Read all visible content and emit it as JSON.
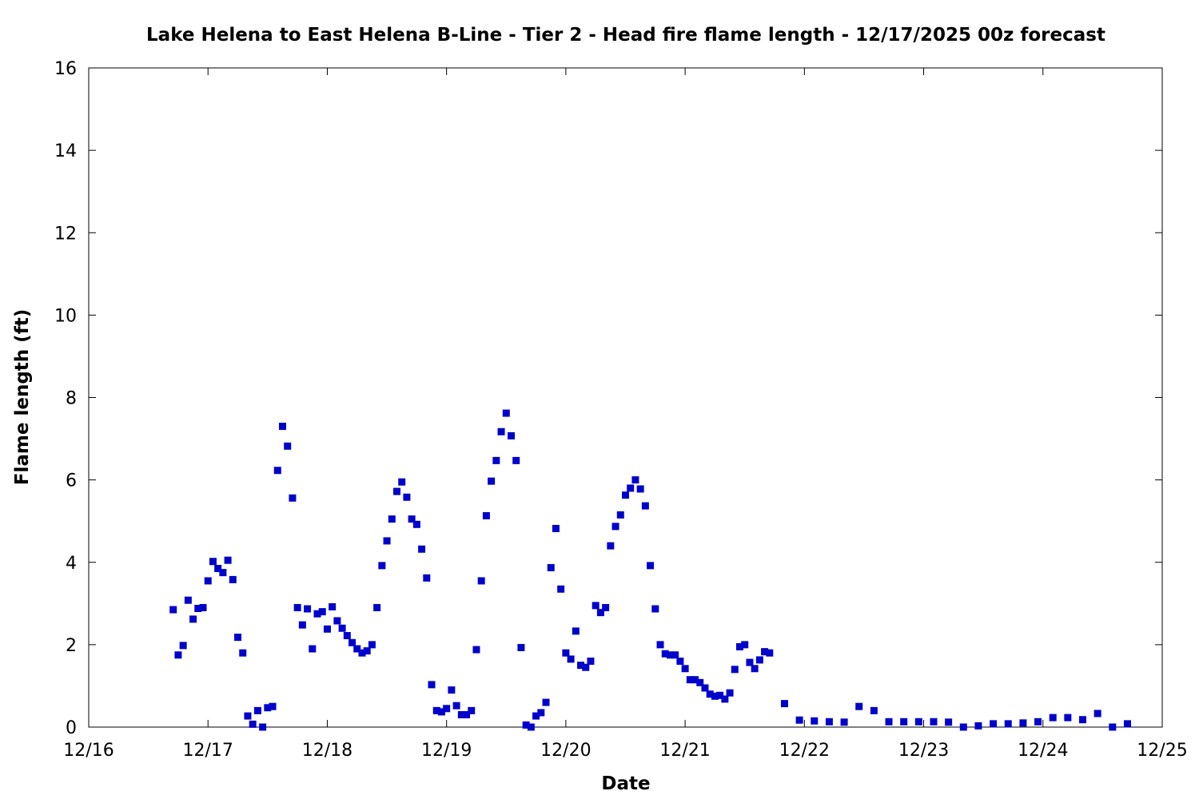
{
  "chart_data": {
    "type": "scatter",
    "title": "Lake Helena to East Helena B-Line - Tier 2 - Head fire flame length - 12/17/2025 00z forecast",
    "xlabel": "Date",
    "ylabel": "Flame length (ft)",
    "xlim": [
      "2025-12-16T00:00",
      "2025-12-25T00:00"
    ],
    "ylim": [
      0,
      16
    ],
    "grid": false,
    "x_tick_labels": [
      "12/16",
      "12/17",
      "12/18",
      "12/19",
      "12/20",
      "12/21",
      "12/22",
      "12/23",
      "12/24",
      "12/25"
    ],
    "y_tick_labels": [
      "0",
      "2",
      "4",
      "6",
      "8",
      "10",
      "12",
      "14",
      "16"
    ],
    "marker_color": "#0000cc",
    "series": [
      {
        "points": [
          [
            "2025-12-16T17:00",
            2.85
          ],
          [
            "2025-12-16T18:00",
            1.75
          ],
          [
            "2025-12-16T19:00",
            1.98
          ],
          [
            "2025-12-16T20:00",
            3.08
          ],
          [
            "2025-12-16T21:00",
            2.62
          ],
          [
            "2025-12-16T22:00",
            2.88
          ],
          [
            "2025-12-16T23:00",
            2.9
          ],
          [
            "2025-12-17T00:00",
            3.55
          ],
          [
            "2025-12-17T01:00",
            4.02
          ],
          [
            "2025-12-17T02:00",
            3.85
          ],
          [
            "2025-12-17T03:00",
            3.75
          ],
          [
            "2025-12-17T04:00",
            4.05
          ],
          [
            "2025-12-17T05:00",
            3.58
          ],
          [
            "2025-12-17T06:00",
            2.18
          ],
          [
            "2025-12-17T07:00",
            1.8
          ],
          [
            "2025-12-17T08:00",
            0.27
          ],
          [
            "2025-12-17T09:00",
            0.07
          ],
          [
            "2025-12-17T10:00",
            0.4
          ],
          [
            "2025-12-17T11:00",
            0.0
          ],
          [
            "2025-12-17T12:00",
            0.47
          ],
          [
            "2025-12-17T13:00",
            0.5
          ],
          [
            "2025-12-17T14:00",
            6.23
          ],
          [
            "2025-12-17T15:00",
            7.3
          ],
          [
            "2025-12-17T16:00",
            6.82
          ],
          [
            "2025-12-17T17:00",
            5.56
          ],
          [
            "2025-12-17T18:00",
            2.9
          ],
          [
            "2025-12-17T19:00",
            2.48
          ],
          [
            "2025-12-17T20:00",
            2.87
          ],
          [
            "2025-12-17T21:00",
            1.9
          ],
          [
            "2025-12-17T22:00",
            2.75
          ],
          [
            "2025-12-17T23:00",
            2.8
          ],
          [
            "2025-12-18T00:00",
            2.38
          ],
          [
            "2025-12-18T01:00",
            2.92
          ],
          [
            "2025-12-18T02:00",
            2.58
          ],
          [
            "2025-12-18T03:00",
            2.4
          ],
          [
            "2025-12-18T04:00",
            2.22
          ],
          [
            "2025-12-18T05:00",
            2.05
          ],
          [
            "2025-12-18T06:00",
            1.9
          ],
          [
            "2025-12-18T07:00",
            1.8
          ],
          [
            "2025-12-18T08:00",
            1.85
          ],
          [
            "2025-12-18T09:00",
            2.0
          ],
          [
            "2025-12-18T10:00",
            2.9
          ],
          [
            "2025-12-18T11:00",
            3.92
          ],
          [
            "2025-12-18T12:00",
            4.52
          ],
          [
            "2025-12-18T13:00",
            5.05
          ],
          [
            "2025-12-18T14:00",
            5.72
          ],
          [
            "2025-12-18T15:00",
            5.95
          ],
          [
            "2025-12-18T16:00",
            5.58
          ],
          [
            "2025-12-18T17:00",
            5.05
          ],
          [
            "2025-12-18T18:00",
            4.92
          ],
          [
            "2025-12-18T19:00",
            4.32
          ],
          [
            "2025-12-18T20:00",
            3.62
          ],
          [
            "2025-12-18T21:00",
            1.03
          ],
          [
            "2025-12-18T22:00",
            0.4
          ],
          [
            "2025-12-18T23:00",
            0.37
          ],
          [
            "2025-12-19T00:00",
            0.45
          ],
          [
            "2025-12-19T01:00",
            0.9
          ],
          [
            "2025-12-19T02:00",
            0.52
          ],
          [
            "2025-12-19T03:00",
            0.3
          ],
          [
            "2025-12-19T04:00",
            0.3
          ],
          [
            "2025-12-19T05:00",
            0.4
          ],
          [
            "2025-12-19T06:00",
            1.88
          ],
          [
            "2025-12-19T07:00",
            3.55
          ],
          [
            "2025-12-19T08:00",
            5.13
          ],
          [
            "2025-12-19T09:00",
            5.97
          ],
          [
            "2025-12-19T10:00",
            6.47
          ],
          [
            "2025-12-19T11:00",
            7.17
          ],
          [
            "2025-12-19T12:00",
            7.62
          ],
          [
            "2025-12-19T13:00",
            7.07
          ],
          [
            "2025-12-19T14:00",
            6.47
          ],
          [
            "2025-12-19T15:00",
            1.93
          ],
          [
            "2025-12-19T16:00",
            0.05
          ],
          [
            "2025-12-19T17:00",
            0.0
          ],
          [
            "2025-12-19T18:00",
            0.27
          ],
          [
            "2025-12-19T19:00",
            0.35
          ],
          [
            "2025-12-19T20:00",
            0.6
          ],
          [
            "2025-12-19T21:00",
            3.87
          ],
          [
            "2025-12-19T22:00",
            4.82
          ],
          [
            "2025-12-19T23:00",
            3.35
          ],
          [
            "2025-12-20T00:00",
            1.8
          ],
          [
            "2025-12-20T01:00",
            1.65
          ],
          [
            "2025-12-20T02:00",
            2.33
          ],
          [
            "2025-12-20T03:00",
            1.5
          ],
          [
            "2025-12-20T04:00",
            1.45
          ],
          [
            "2025-12-20T05:00",
            1.6
          ],
          [
            "2025-12-20T06:00",
            2.95
          ],
          [
            "2025-12-20T07:00",
            2.78
          ],
          [
            "2025-12-20T08:00",
            2.9
          ],
          [
            "2025-12-20T09:00",
            4.4
          ],
          [
            "2025-12-20T10:00",
            4.87
          ],
          [
            "2025-12-20T11:00",
            5.15
          ],
          [
            "2025-12-20T12:00",
            5.63
          ],
          [
            "2025-12-20T13:00",
            5.8
          ],
          [
            "2025-12-20T14:00",
            6.0
          ],
          [
            "2025-12-20T15:00",
            5.78
          ],
          [
            "2025-12-20T16:00",
            5.37
          ],
          [
            "2025-12-20T17:00",
            3.92
          ],
          [
            "2025-12-20T18:00",
            2.87
          ],
          [
            "2025-12-20T19:00",
            2.0
          ],
          [
            "2025-12-20T20:00",
            1.78
          ],
          [
            "2025-12-20T21:00",
            1.75
          ],
          [
            "2025-12-20T22:00",
            1.75
          ],
          [
            "2025-12-20T23:00",
            1.6
          ],
          [
            "2025-12-21T00:00",
            1.42
          ],
          [
            "2025-12-21T01:00",
            1.15
          ],
          [
            "2025-12-21T02:00",
            1.15
          ],
          [
            "2025-12-21T03:00",
            1.08
          ],
          [
            "2025-12-21T04:00",
            0.95
          ],
          [
            "2025-12-21T05:00",
            0.8
          ],
          [
            "2025-12-21T06:00",
            0.75
          ],
          [
            "2025-12-21T07:00",
            0.77
          ],
          [
            "2025-12-21T08:00",
            0.68
          ],
          [
            "2025-12-21T09:00",
            0.83
          ],
          [
            "2025-12-21T10:00",
            1.4
          ],
          [
            "2025-12-21T11:00",
            1.95
          ],
          [
            "2025-12-21T12:00",
            2.0
          ],
          [
            "2025-12-21T13:00",
            1.57
          ],
          [
            "2025-12-21T14:00",
            1.42
          ],
          [
            "2025-12-21T15:00",
            1.63
          ],
          [
            "2025-12-21T16:00",
            1.83
          ],
          [
            "2025-12-21T17:00",
            1.8
          ],
          [
            "2025-12-21T20:00",
            0.57
          ],
          [
            "2025-12-21T23:00",
            0.17
          ],
          [
            "2025-12-22T02:00",
            0.15
          ],
          [
            "2025-12-22T05:00",
            0.13
          ],
          [
            "2025-12-22T08:00",
            0.12
          ],
          [
            "2025-12-22T11:00",
            0.5
          ],
          [
            "2025-12-22T14:00",
            0.4
          ],
          [
            "2025-12-22T17:00",
            0.13
          ],
          [
            "2025-12-22T20:00",
            0.13
          ],
          [
            "2025-12-22T23:00",
            0.13
          ],
          [
            "2025-12-23T02:00",
            0.13
          ],
          [
            "2025-12-23T05:00",
            0.12
          ],
          [
            "2025-12-23T08:00",
            0.0
          ],
          [
            "2025-12-23T11:00",
            0.03
          ],
          [
            "2025-12-23T14:00",
            0.08
          ],
          [
            "2025-12-23T17:00",
            0.08
          ],
          [
            "2025-12-23T20:00",
            0.1
          ],
          [
            "2025-12-23T23:00",
            0.13
          ],
          [
            "2025-12-24T02:00",
            0.23
          ],
          [
            "2025-12-24T05:00",
            0.23
          ],
          [
            "2025-12-24T08:00",
            0.18
          ],
          [
            "2025-12-24T11:00",
            0.33
          ],
          [
            "2025-12-24T14:00",
            0.0
          ],
          [
            "2025-12-24T17:00",
            0.08
          ]
        ]
      }
    ]
  }
}
